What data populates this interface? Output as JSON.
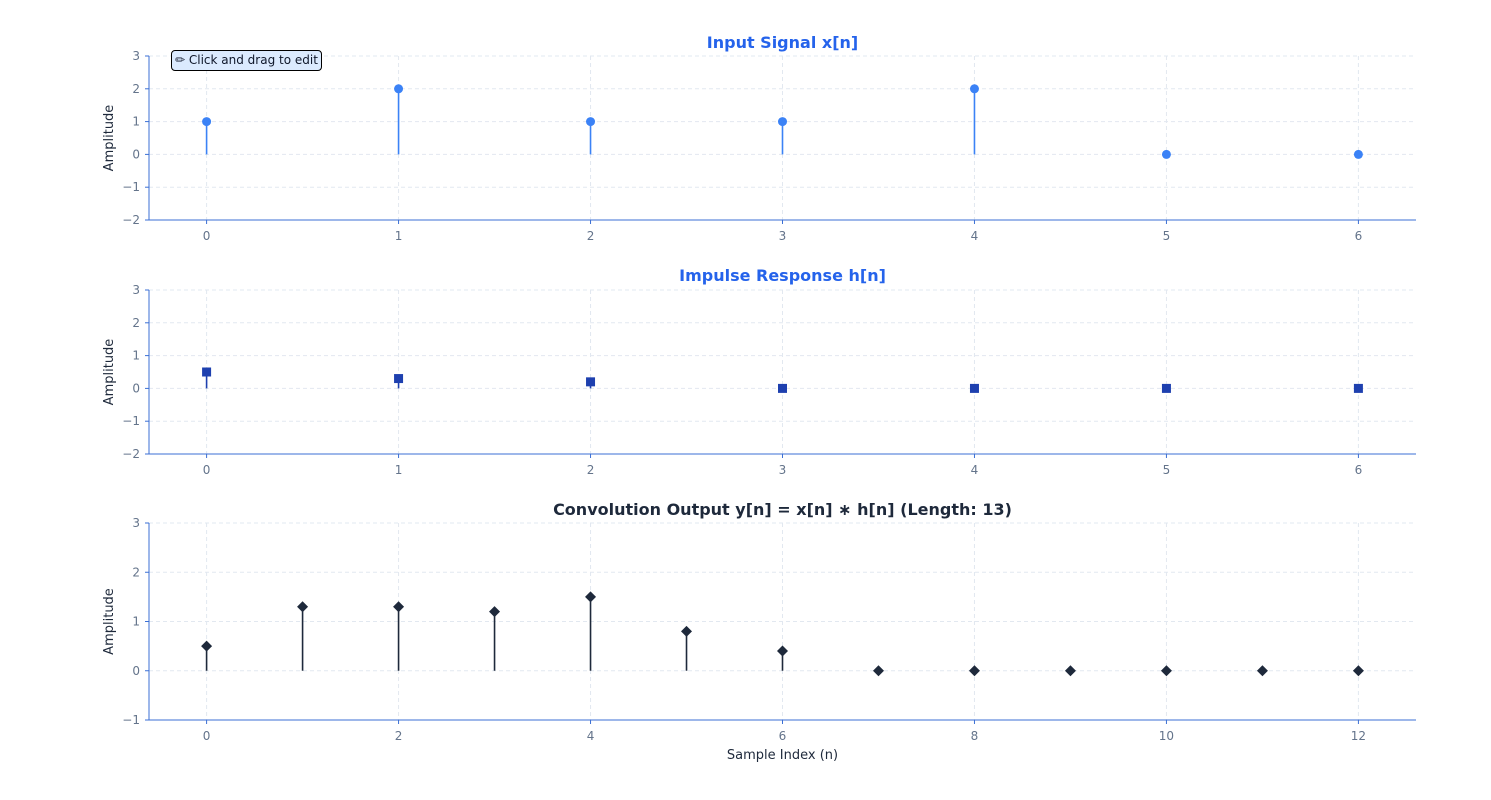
{
  "hint": {
    "text": "✏ Click and drag to edit"
  },
  "chart_data": [
    {
      "type": "stem",
      "title": "Input Signal x[n]",
      "title_color": "#2563eb",
      "xlabel": "",
      "ylabel": "Amplitude",
      "x": [
        0,
        1,
        2,
        3,
        4,
        5,
        6
      ],
      "values": [
        1,
        2,
        1,
        1,
        2,
        0,
        0
      ],
      "marker": "circle",
      "color": "#3b82f6",
      "xlim": [
        -0.3,
        6.3
      ],
      "ylim": [
        -2,
        3
      ],
      "xticks": [
        0,
        1,
        2,
        3,
        4,
        5,
        6
      ],
      "yticks": [
        -2,
        -1,
        0,
        1,
        2,
        3
      ],
      "grid": true
    },
    {
      "type": "stem",
      "title": "Impulse Response h[n]",
      "title_color": "#2563eb",
      "xlabel": "",
      "ylabel": "Amplitude",
      "x": [
        0,
        1,
        2,
        3,
        4,
        5,
        6
      ],
      "values": [
        0.5,
        0.3,
        0.2,
        0,
        0,
        0,
        0
      ],
      "marker": "square",
      "color": "#1e40af",
      "xlim": [
        -0.3,
        6.3
      ],
      "ylim": [
        -2,
        3
      ],
      "xticks": [
        0,
        1,
        2,
        3,
        4,
        5,
        6
      ],
      "yticks": [
        -2,
        -1,
        0,
        1,
        2,
        3
      ],
      "grid": true
    },
    {
      "type": "stem",
      "title": "Convolution Output y[n] = x[n] ∗ h[n] (Length: 13)",
      "title_color": "#1e293b",
      "xlabel": "Sample Index (n)",
      "ylabel": "Amplitude",
      "x": [
        0,
        1,
        2,
        3,
        4,
        5,
        6,
        7,
        8,
        9,
        10,
        11,
        12
      ],
      "values": [
        0.5,
        1.3,
        1.3,
        1.2,
        1.5,
        0.8,
        0.4,
        0,
        0,
        0,
        0,
        0,
        0
      ],
      "marker": "diamond",
      "color": "#1e293b",
      "xlim": [
        -0.6,
        12.6
      ],
      "ylim": [
        -1,
        3
      ],
      "xticks": [
        0,
        2,
        4,
        6,
        8,
        10,
        12
      ],
      "yticks": [
        -1,
        0,
        1,
        2,
        3
      ],
      "grid": true
    }
  ]
}
